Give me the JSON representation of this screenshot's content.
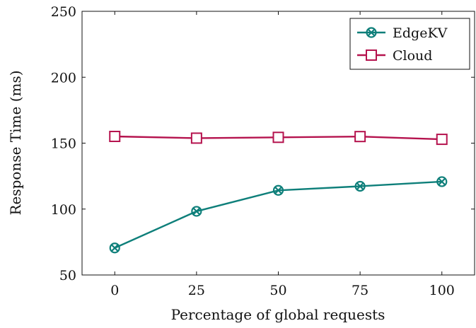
{
  "chart_data": {
    "type": "line",
    "title": "",
    "xlabel": "Percentage of global requests",
    "ylabel": "Response Time (ms)",
    "x": [
      0,
      25,
      50,
      75,
      100
    ],
    "xlim": [
      -10,
      110
    ],
    "ylim": [
      50,
      250
    ],
    "xticks": [
      "0",
      "25",
      "50",
      "75",
      "100"
    ],
    "yticks": [
      "50",
      "100",
      "150",
      "200",
      "250"
    ],
    "legend_position": "top-right",
    "grid": false,
    "series": [
      {
        "name": "EdgeKV",
        "values": [
          70.5,
          98.3,
          114.2,
          117.3,
          120.8
        ],
        "color": "#0e7f7a",
        "marker": "circle-x"
      },
      {
        "name": "Cloud",
        "values": [
          155.1,
          153.8,
          154.4,
          155.0,
          152.9
        ],
        "color": "#b5134e",
        "marker": "square"
      }
    ]
  }
}
